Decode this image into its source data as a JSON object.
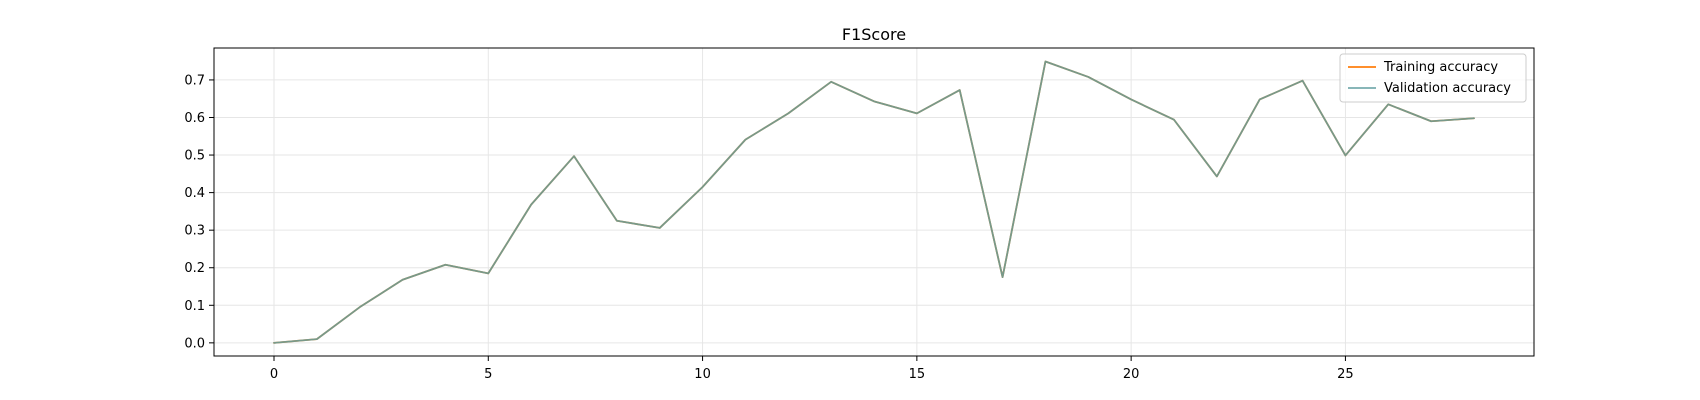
{
  "chart_data": {
    "type": "line",
    "title": "F1Score",
    "xlabel": "",
    "ylabel": "",
    "xlim": [
      -1.4,
      29.4
    ],
    "ylim": [
      -0.035,
      0.785
    ],
    "xticks": [
      0,
      5,
      10,
      15,
      20,
      25
    ],
    "yticks": [
      0.0,
      0.1,
      0.2,
      0.3,
      0.4,
      0.5,
      0.6,
      0.7
    ],
    "grid": true,
    "legend": "top-right",
    "x": [
      0,
      1,
      2,
      3,
      4,
      5,
      6,
      7,
      8,
      9,
      10,
      11,
      12,
      13,
      14,
      15,
      16,
      17,
      18,
      19,
      20,
      21,
      22,
      23,
      24,
      25,
      26,
      27,
      28
    ],
    "series": [
      {
        "name": "Training accuracy",
        "color": "#ff7f0e",
        "values": [
          0.0,
          0.01,
          0.095,
          0.168,
          0.208,
          0.185,
          0.368,
          0.497,
          0.325,
          0.306,
          0.415,
          0.541,
          0.611,
          0.695,
          0.643,
          0.611,
          0.673,
          0.175,
          0.749,
          0.708,
          0.648,
          0.594,
          0.443,
          0.648,
          0.698,
          0.499,
          0.635,
          0.59,
          0.598
        ]
      },
      {
        "name": "Validation accuracy",
        "color": "#5f9ea0",
        "values": [
          0.0,
          0.01,
          0.095,
          0.168,
          0.208,
          0.185,
          0.368,
          0.497,
          0.325,
          0.306,
          0.415,
          0.541,
          0.611,
          0.695,
          0.643,
          0.611,
          0.673,
          0.175,
          0.749,
          0.708,
          0.648,
          0.594,
          0.443,
          0.648,
          0.698,
          0.499,
          0.635,
          0.59,
          0.598
        ]
      }
    ]
  }
}
